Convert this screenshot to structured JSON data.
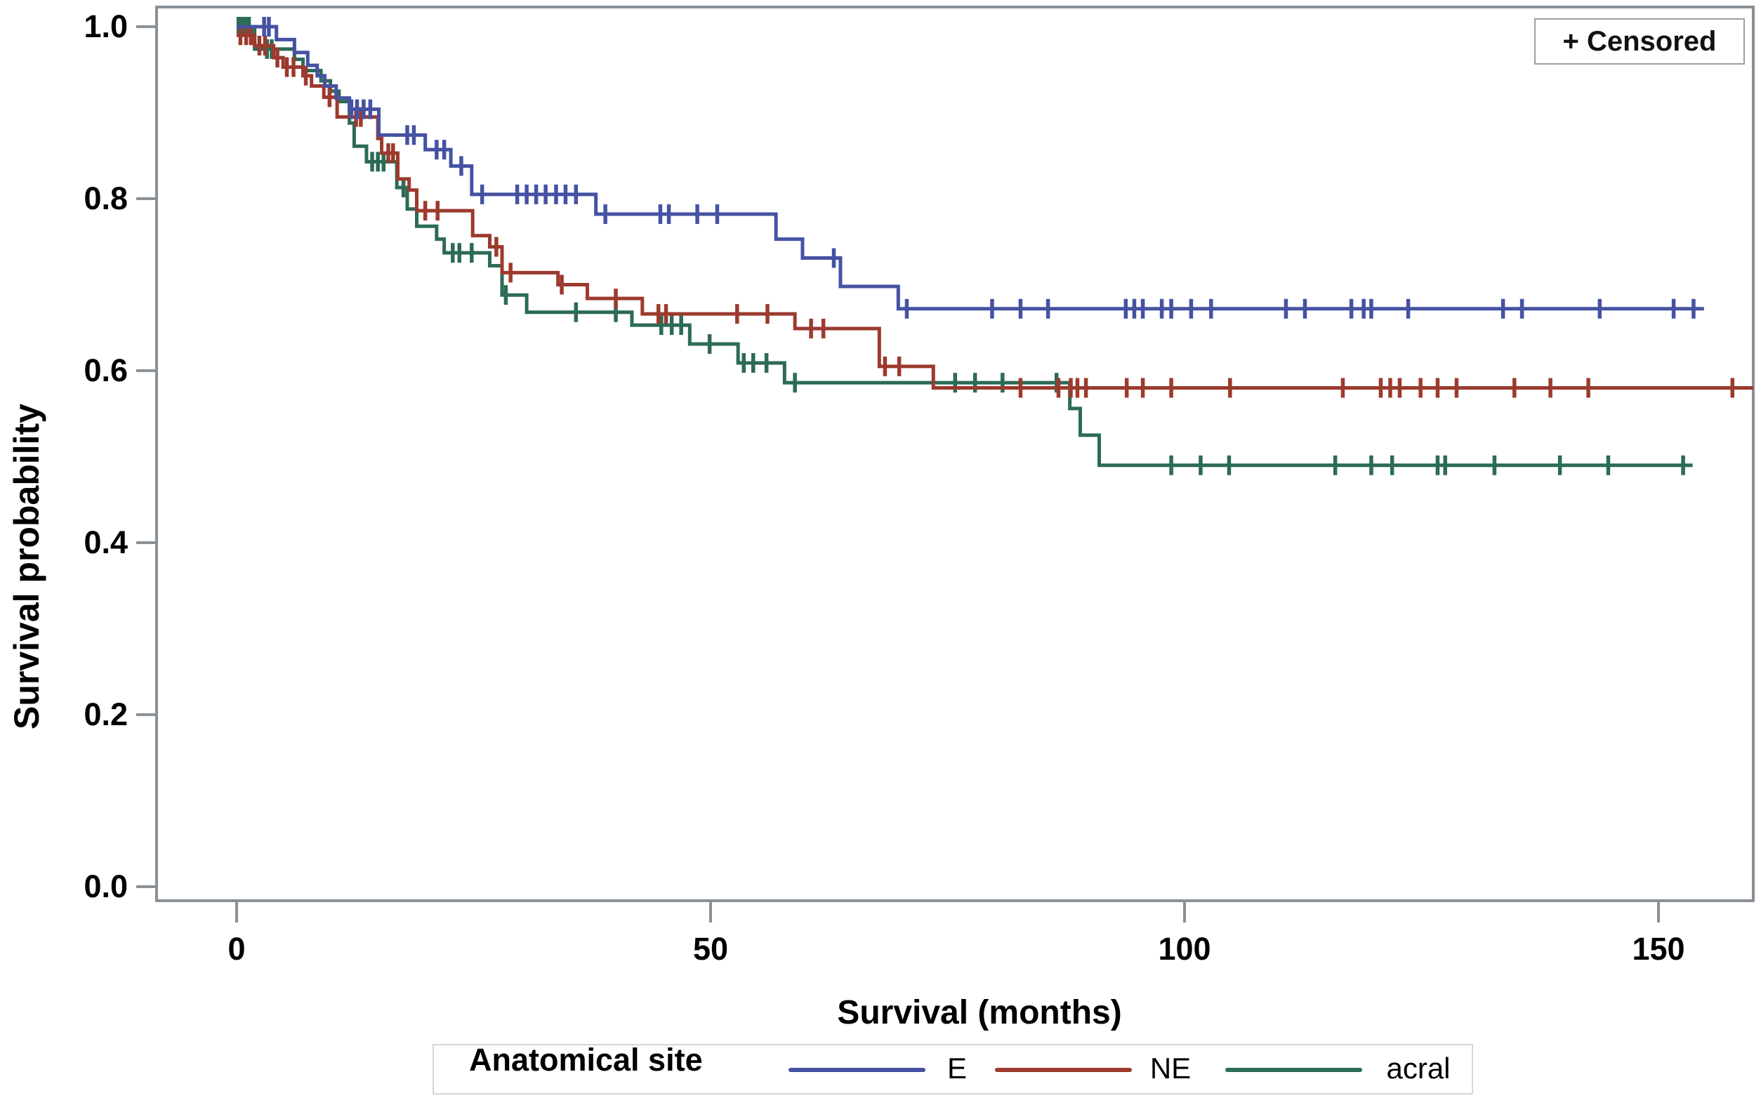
{
  "chart_data": {
    "type": "line",
    "subtype": "kaplan-meier-step",
    "title": "",
    "xlabel": "Survival (months)",
    "ylabel": "Survival probability",
    "censored_label": "+ Censored",
    "legend_title": "Anatomical site",
    "legend_position": "bottom",
    "grid": false,
    "xlim": [
      -8.4,
      160
    ],
    "ylim": [
      -0.016,
      1.023
    ],
    "xticks": [
      0,
      50,
      100,
      150
    ],
    "yticks": [
      1.0,
      0.8,
      0.6,
      0.4,
      0.2,
      0.0
    ],
    "ytick_labels": [
      "1.0",
      "0.8",
      "0.6",
      "0.4",
      "0.2",
      "0.0"
    ],
    "xtick_labels": [
      "0",
      "50",
      "100",
      "150"
    ],
    "frame_color": "#8a9096",
    "series": [
      {
        "name": "acral",
        "color": "#2c6b55",
        "end": 153.6,
        "steps": [
          [
            0,
            1.0
          ],
          [
            1.9,
            0.974
          ],
          [
            6.1,
            0.962
          ],
          [
            7.0,
            0.949
          ],
          [
            8.9,
            0.937
          ],
          [
            9.9,
            0.925
          ],
          [
            10.8,
            0.913
          ],
          [
            11.9,
            0.888
          ],
          [
            12.4,
            0.861
          ],
          [
            13.7,
            0.843
          ],
          [
            16.9,
            0.813
          ],
          [
            18.0,
            0.788
          ],
          [
            19.0,
            0.768
          ],
          [
            21.1,
            0.753
          ],
          [
            21.9,
            0.737
          ],
          [
            26.7,
            0.722
          ],
          [
            28.0,
            0.688
          ],
          [
            30.6,
            0.668
          ],
          [
            41.7,
            0.653
          ],
          [
            47.8,
            0.631
          ],
          [
            52.9,
            0.609
          ],
          [
            57.8,
            0.586
          ],
          [
            87.9,
            0.556
          ],
          [
            89.0,
            0.525
          ],
          [
            91.0,
            0.49
          ]
        ],
        "censors": [
          [
            0.2,
            1.0
          ],
          [
            0.6,
            1.0
          ],
          [
            1.0,
            1.0
          ],
          [
            1.3,
            1.0
          ],
          [
            3.2,
            0.974
          ],
          [
            3.7,
            0.974
          ],
          [
            14.3,
            0.843
          ],
          [
            14.9,
            0.843
          ],
          [
            15.5,
            0.843
          ],
          [
            17.6,
            0.813
          ],
          [
            22.8,
            0.737
          ],
          [
            23.5,
            0.737
          ],
          [
            24.8,
            0.737
          ],
          [
            28.4,
            0.688
          ],
          [
            35.8,
            0.668
          ],
          [
            40.0,
            0.668
          ],
          [
            44.8,
            0.653
          ],
          [
            45.9,
            0.653
          ],
          [
            46.9,
            0.653
          ],
          [
            49.9,
            0.631
          ],
          [
            53.5,
            0.609
          ],
          [
            54.5,
            0.609
          ],
          [
            55.9,
            0.609
          ],
          [
            58.9,
            0.586
          ],
          [
            75.8,
            0.586
          ],
          [
            77.9,
            0.586
          ],
          [
            80.8,
            0.586
          ],
          [
            86.5,
            0.586
          ],
          [
            98.6,
            0.49
          ],
          [
            101.7,
            0.49
          ],
          [
            104.7,
            0.49
          ],
          [
            115.9,
            0.49
          ],
          [
            119.7,
            0.49
          ],
          [
            121.9,
            0.49
          ],
          [
            126.7,
            0.49
          ],
          [
            127.5,
            0.49
          ],
          [
            132.7,
            0.49
          ],
          [
            139.6,
            0.49
          ],
          [
            144.7,
            0.49
          ],
          [
            152.6,
            0.49
          ]
        ]
      },
      {
        "name": "NE",
        "color": "#9c3a2e",
        "end": 160,
        "steps": [
          [
            0,
            0.99
          ],
          [
            1.9,
            0.978
          ],
          [
            3.9,
            0.964
          ],
          [
            4.9,
            0.953
          ],
          [
            7.0,
            0.943
          ],
          [
            7.9,
            0.931
          ],
          [
            9.2,
            0.918
          ],
          [
            10.6,
            0.895
          ],
          [
            14.9,
            0.87
          ],
          [
            15.3,
            0.853
          ],
          [
            17.0,
            0.823
          ],
          [
            18.2,
            0.81
          ],
          [
            19.0,
            0.786
          ],
          [
            24.9,
            0.757
          ],
          [
            26.7,
            0.744
          ],
          [
            28.0,
            0.714
          ],
          [
            33.9,
            0.7
          ],
          [
            37.0,
            0.684
          ],
          [
            42.8,
            0.666
          ],
          [
            58.9,
            0.649
          ],
          [
            67.8,
            0.605
          ],
          [
            73.5,
            0.58
          ]
        ],
        "censors": [
          [
            0.4,
            0.99
          ],
          [
            1.0,
            0.99
          ],
          [
            1.5,
            0.99
          ],
          [
            2.4,
            0.978
          ],
          [
            3.0,
            0.978
          ],
          [
            4.3,
            0.964
          ],
          [
            5.3,
            0.953
          ],
          [
            6.0,
            0.953
          ],
          [
            7.3,
            0.943
          ],
          [
            9.8,
            0.918
          ],
          [
            12.6,
            0.895
          ],
          [
            13.1,
            0.895
          ],
          [
            16.0,
            0.853
          ],
          [
            16.5,
            0.853
          ],
          [
            19.9,
            0.786
          ],
          [
            21.2,
            0.786
          ],
          [
            27.4,
            0.744
          ],
          [
            28.9,
            0.714
          ],
          [
            34.3,
            0.7
          ],
          [
            40.0,
            0.684
          ],
          [
            44.5,
            0.666
          ],
          [
            45.3,
            0.666
          ],
          [
            52.8,
            0.666
          ],
          [
            56.0,
            0.666
          ],
          [
            60.6,
            0.649
          ],
          [
            61.9,
            0.649
          ],
          [
            68.4,
            0.605
          ],
          [
            69.9,
            0.605
          ],
          [
            82.7,
            0.58
          ],
          [
            86.7,
            0.58
          ],
          [
            88.0,
            0.58
          ],
          [
            88.7,
            0.58
          ],
          [
            89.6,
            0.58
          ],
          [
            93.9,
            0.58
          ],
          [
            95.6,
            0.58
          ],
          [
            98.6,
            0.58
          ],
          [
            104.8,
            0.58
          ],
          [
            116.7,
            0.58
          ],
          [
            120.7,
            0.58
          ],
          [
            121.7,
            0.58
          ],
          [
            122.7,
            0.58
          ],
          [
            124.9,
            0.58
          ],
          [
            126.7,
            0.58
          ],
          [
            128.7,
            0.58
          ],
          [
            134.8,
            0.58
          ],
          [
            138.6,
            0.58
          ],
          [
            142.6,
            0.58
          ],
          [
            157.8,
            0.58
          ]
        ]
      },
      {
        "name": "E",
        "color": "#4552a3",
        "end": 154.8,
        "steps": [
          [
            0,
            1.0
          ],
          [
            4.2,
            0.985
          ],
          [
            6.1,
            0.97
          ],
          [
            7.5,
            0.955
          ],
          [
            8.5,
            0.943
          ],
          [
            9.3,
            0.931
          ],
          [
            10.5,
            0.917
          ],
          [
            11.9,
            0.904
          ],
          [
            15.0,
            0.874
          ],
          [
            19.9,
            0.857
          ],
          [
            22.6,
            0.838
          ],
          [
            24.8,
            0.805
          ],
          [
            37.9,
            0.782
          ],
          [
            56.9,
            0.753
          ],
          [
            59.7,
            0.731
          ],
          [
            63.7,
            0.698
          ],
          [
            69.8,
            0.672
          ]
        ],
        "censors": [
          [
            2.9,
            1.0
          ],
          [
            3.4,
            1.0
          ],
          [
            12.1,
            0.904
          ],
          [
            12.7,
            0.904
          ],
          [
            13.4,
            0.904
          ],
          [
            14.1,
            0.904
          ],
          [
            18.0,
            0.874
          ],
          [
            18.7,
            0.874
          ],
          [
            21.1,
            0.857
          ],
          [
            21.9,
            0.857
          ],
          [
            23.7,
            0.838
          ],
          [
            25.9,
            0.805
          ],
          [
            29.6,
            0.805
          ],
          [
            30.6,
            0.805
          ],
          [
            31.6,
            0.805
          ],
          [
            32.6,
            0.805
          ],
          [
            33.7,
            0.805
          ],
          [
            34.7,
            0.805
          ],
          [
            35.8,
            0.805
          ],
          [
            38.9,
            0.782
          ],
          [
            44.7,
            0.782
          ],
          [
            45.6,
            0.782
          ],
          [
            48.6,
            0.782
          ],
          [
            50.7,
            0.782
          ],
          [
            63.0,
            0.731
          ],
          [
            70.7,
            0.672
          ],
          [
            79.7,
            0.672
          ],
          [
            82.7,
            0.672
          ],
          [
            85.6,
            0.672
          ],
          [
            93.8,
            0.672
          ],
          [
            94.7,
            0.672
          ],
          [
            95.6,
            0.672
          ],
          [
            97.6,
            0.672
          ],
          [
            98.6,
            0.672
          ],
          [
            100.7,
            0.672
          ],
          [
            102.8,
            0.672
          ],
          [
            110.7,
            0.672
          ],
          [
            112.7,
            0.672
          ],
          [
            117.6,
            0.672
          ],
          [
            118.9,
            0.672
          ],
          [
            119.7,
            0.672
          ],
          [
            123.6,
            0.672
          ],
          [
            133.6,
            0.672
          ],
          [
            135.6,
            0.672
          ],
          [
            143.8,
            0.672
          ],
          [
            151.6,
            0.672
          ],
          [
            153.7,
            0.672
          ]
        ]
      }
    ]
  }
}
